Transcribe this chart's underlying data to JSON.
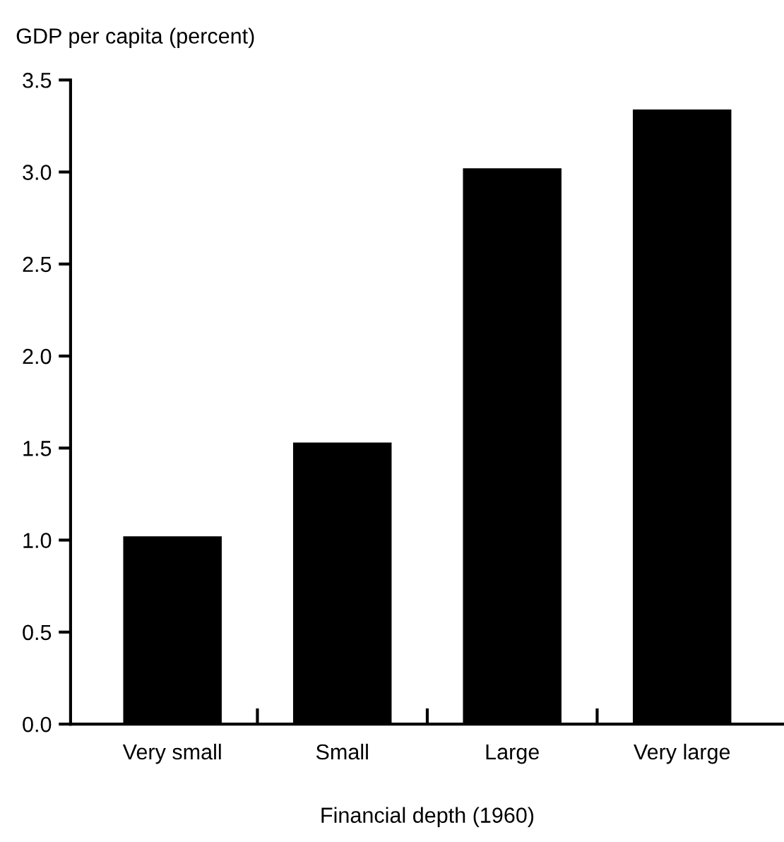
{
  "chart_data": {
    "type": "bar",
    "ylabel": "GDP per capita (percent)",
    "xlabel": "Financial depth (1960)",
    "categories": [
      "Very small",
      "Small",
      "Large",
      "Very large"
    ],
    "values": [
      1.02,
      1.53,
      3.02,
      3.34
    ],
    "color": "#000000",
    "ylim": [
      0,
      3.5
    ],
    "yticks": [
      {
        "value": 0,
        "label": "0.0"
      },
      0.5,
      {
        "value": 1,
        "label": "1.0"
      },
      1.5,
      {
        "value": 2,
        "label": "2.0"
      },
      2.5,
      {
        "value": 3,
        "label": "3.0"
      },
      3.5
    ],
    "grid": false,
    "legend": false
  }
}
